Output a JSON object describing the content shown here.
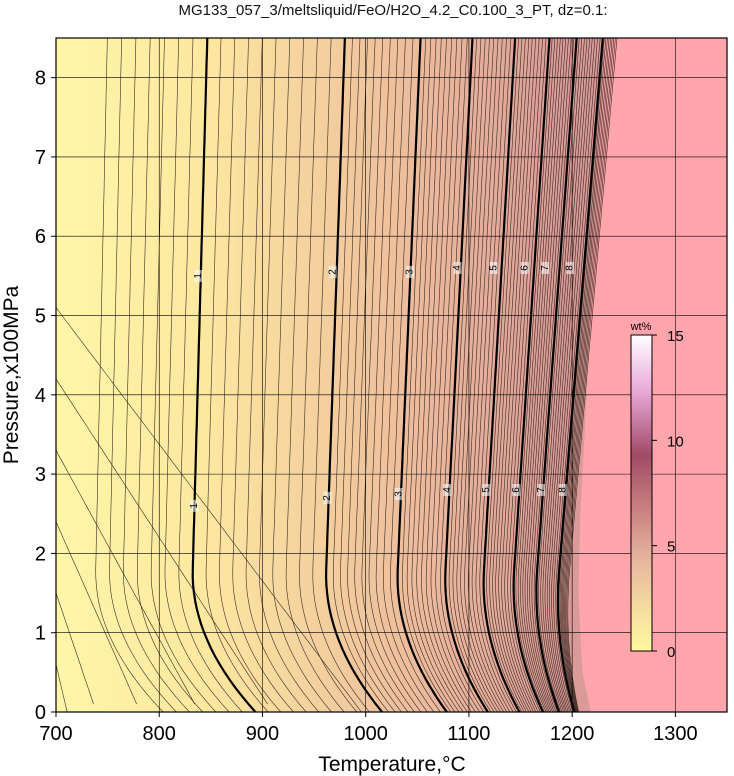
{
  "chart_data": {
    "type": "contour",
    "title": "MG133_057_3/meltsliquid/FeO/H2O_4.2_C0.100_3_PT, dz=0.1:",
    "xlabel": "Temperature,°C",
    "ylabel": "Pressure,x100MPa",
    "xlim": [
      700,
      1350
    ],
    "ylim": [
      0,
      8.5
    ],
    "xticks": [
      700,
      800,
      900,
      1000,
      1100,
      1200,
      1300
    ],
    "yticks": [
      0,
      1,
      2,
      3,
      4,
      5,
      6,
      7,
      8
    ],
    "grid": true,
    "contour_interval": 0.1,
    "major_contours": [
      1,
      2,
      3,
      4,
      5,
      6,
      7,
      8
    ],
    "contour_label_positions": [
      {
        "level": 1,
        "x": 838,
        "y": 5.5
      },
      {
        "level": 1,
        "x": 834,
        "y": 2.6
      },
      {
        "level": 2,
        "x": 968,
        "y": 5.55
      },
      {
        "level": 2,
        "x": 963,
        "y": 2.7
      },
      {
        "level": 3,
        "x": 1043,
        "y": 5.55
      },
      {
        "level": 3,
        "x": 1032,
        "y": 2.75
      },
      {
        "level": 4,
        "x": 1089,
        "y": 5.6
      },
      {
        "level": 4,
        "x": 1079,
        "y": 2.8
      },
      {
        "level": 5,
        "x": 1124,
        "y": 5.6
      },
      {
        "level": 5,
        "x": 1117,
        "y": 2.8
      },
      {
        "level": 6,
        "x": 1154,
        "y": 5.6
      },
      {
        "level": 6,
        "x": 1146,
        "y": 2.8
      },
      {
        "level": 7,
        "x": 1174,
        "y": 5.6
      },
      {
        "level": 7,
        "x": 1170,
        "y": 2.8
      },
      {
        "level": 8,
        "x": 1198,
        "y": 5.6
      },
      {
        "level": 8,
        "x": 1191,
        "y": 2.8
      }
    ],
    "colorbar": {
      "label": "wt%",
      "range": [
        0,
        15
      ],
      "ticks": [
        0,
        5,
        10,
        15
      ],
      "colors": [
        "#fff8a0",
        "#f4c8a0",
        "#c98080",
        "#a84a6a",
        "#f8d0f0",
        "#ffffff"
      ]
    },
    "regions": {
      "low_color": "#fff5a8",
      "high_color": "#ffa5ab",
      "low_region_note": "",
      "high_boundary_T": [
        [
          0,
          1218
        ],
        [
          0.5,
          1210
        ],
        [
          1.5,
          1206
        ],
        [
          2.5,
          1208
        ],
        [
          4,
          1214
        ],
        [
          6,
          1220
        ],
        [
          8.5,
          1232
        ]
      ]
    }
  }
}
